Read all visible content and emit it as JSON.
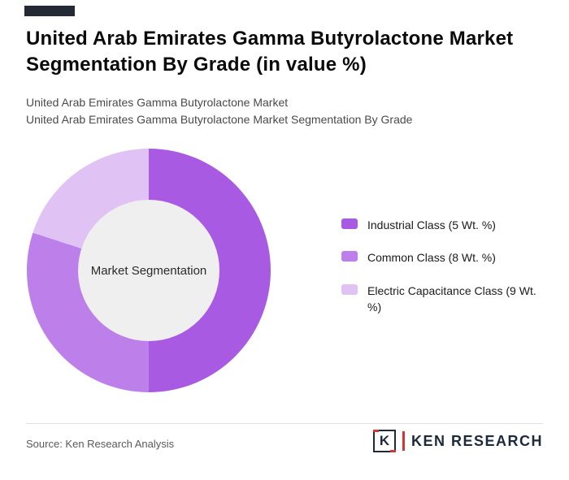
{
  "header": {
    "title": "United Arab Emirates Gamma Butyrolactone Market Segmentation By Grade (in value %)",
    "subtitle_line1": "United Arab Emirates Gamma Butyrolactone Market",
    "subtitle_line2": "United Arab Emirates Gamma Butyrolactone Market Segmentation By Grade"
  },
  "chart_data": {
    "type": "pie",
    "donut": true,
    "title": "United Arab Emirates Gamma Butyrolactone Market Segmentation By Grade (in value %)",
    "center_label": "Market Segmentation",
    "legend_position": "right",
    "categories": [
      "Industrial Class",
      "Common Class",
      "Electric Capacitance Class"
    ],
    "values": [
      5,
      8,
      9
    ],
    "unit": "Wt. %",
    "series": [
      {
        "name": "Industrial Class",
        "value": 5,
        "label": "Industrial Class (5 Wt. %)",
        "color": "#a95ae3",
        "visual_pct": 50
      },
      {
        "name": "Common Class",
        "value": 8,
        "label": "Common Class (8 Wt. %)",
        "color": "#bd7fea",
        "visual_pct": 30
      },
      {
        "name": "Electric Capacitance Class",
        "value": 9,
        "label": "Electric Capacitance Class (9 Wt. %)",
        "color": "#e0c2f5",
        "visual_pct": 20
      }
    ]
  },
  "footer": {
    "source": "Source: Ken Research Analysis",
    "logo": {
      "letter": "K",
      "text": "KEN RESEARCH"
    }
  }
}
